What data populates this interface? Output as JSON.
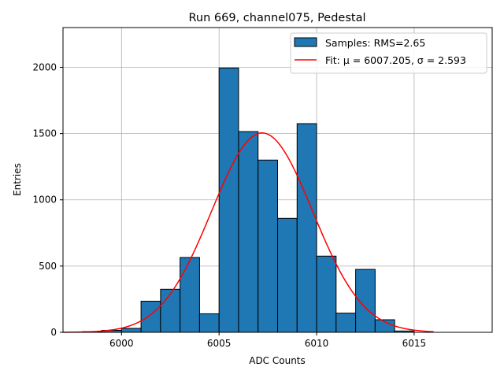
{
  "chart_data": {
    "type": "bar",
    "title": "Run 669, channel075, Pedestal",
    "xlabel": "ADC Counts",
    "ylabel": "Entries",
    "xlim": [
      5997,
      6019
    ],
    "ylim": [
      0,
      2300
    ],
    "xticks": [
      6000,
      6005,
      6010,
      6015
    ],
    "yticks": [
      0,
      500,
      1000,
      1500,
      2000
    ],
    "grid": true,
    "legend_position": "top-right",
    "bins": {
      "edges": [
        5998,
        5999,
        6000,
        6001,
        6002,
        6003,
        6004,
        6005,
        6006,
        6007,
        6008,
        6009,
        6010,
        6011,
        6012,
        6013,
        6014
      ],
      "values": [
        5,
        15,
        30,
        235,
        325,
        565,
        140,
        1995,
        1515,
        1300,
        860,
        1575,
        575,
        145,
        475,
        95,
        10
      ]
    },
    "fit": {
      "type": "gaussian",
      "mu": 6007.205,
      "sigma": 2.593,
      "amplitude": 1505,
      "x_range": [
        5997,
        6016
      ]
    },
    "legend": [
      {
        "label": "Samples: RMS=2.65",
        "kind": "patch",
        "color": "#1f77b4"
      },
      {
        "label": "Fit: μ = 6007.205, σ = 2.593",
        "kind": "line",
        "color": "#ff0000"
      }
    ],
    "colors": {
      "bar": "#1f77b4",
      "bar_edge": "#000000",
      "fit": "#ff0000",
      "grid": "#b0b0b0"
    }
  }
}
